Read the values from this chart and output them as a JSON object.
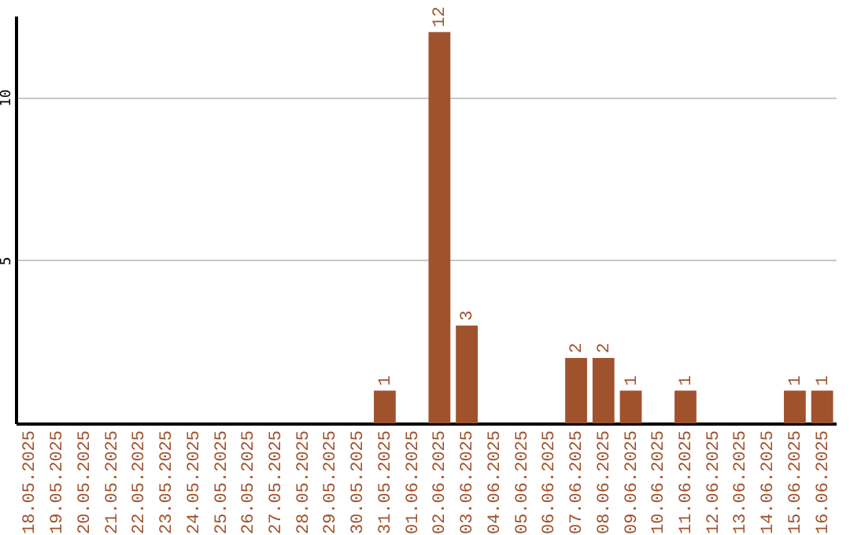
{
  "chart_data": {
    "type": "bar",
    "categories": [
      "18.05.2025",
      "19.05.2025",
      "20.05.2025",
      "21.05.2025",
      "22.05.2025",
      "23.05.2025",
      "24.05.2025",
      "25.05.2025",
      "26.05.2025",
      "27.05.2025",
      "28.05.2025",
      "29.05.2025",
      "30.05.2025",
      "31.05.2025",
      "01.06.2025",
      "02.06.2025",
      "03.06.2025",
      "04.06.2025",
      "05.06.2025",
      "06.06.2025",
      "07.06.2025",
      "08.06.2025",
      "09.06.2025",
      "10.06.2025",
      "11.06.2025",
      "12.06.2025",
      "13.06.2025",
      "14.06.2025",
      "15.06.2025",
      "16.06.2025"
    ],
    "values": [
      0,
      0,
      0,
      0,
      0,
      0,
      0,
      0,
      0,
      0,
      0,
      0,
      0,
      1,
      0,
      12,
      3,
      0,
      0,
      0,
      2,
      2,
      1,
      0,
      1,
      0,
      0,
      0,
      1,
      1
    ],
    "value_labels": [
      null,
      null,
      null,
      null,
      null,
      null,
      null,
      null,
      null,
      null,
      null,
      null,
      null,
      "1",
      null,
      "12",
      "3",
      null,
      null,
      null,
      "2",
      "2",
      "1",
      null,
      "1",
      null,
      null,
      null,
      "1",
      "1"
    ],
    "color": "#a0522d",
    "ylim": [
      0,
      12.5
    ],
    "yticks": [
      5,
      10
    ],
    "grid": "y"
  }
}
